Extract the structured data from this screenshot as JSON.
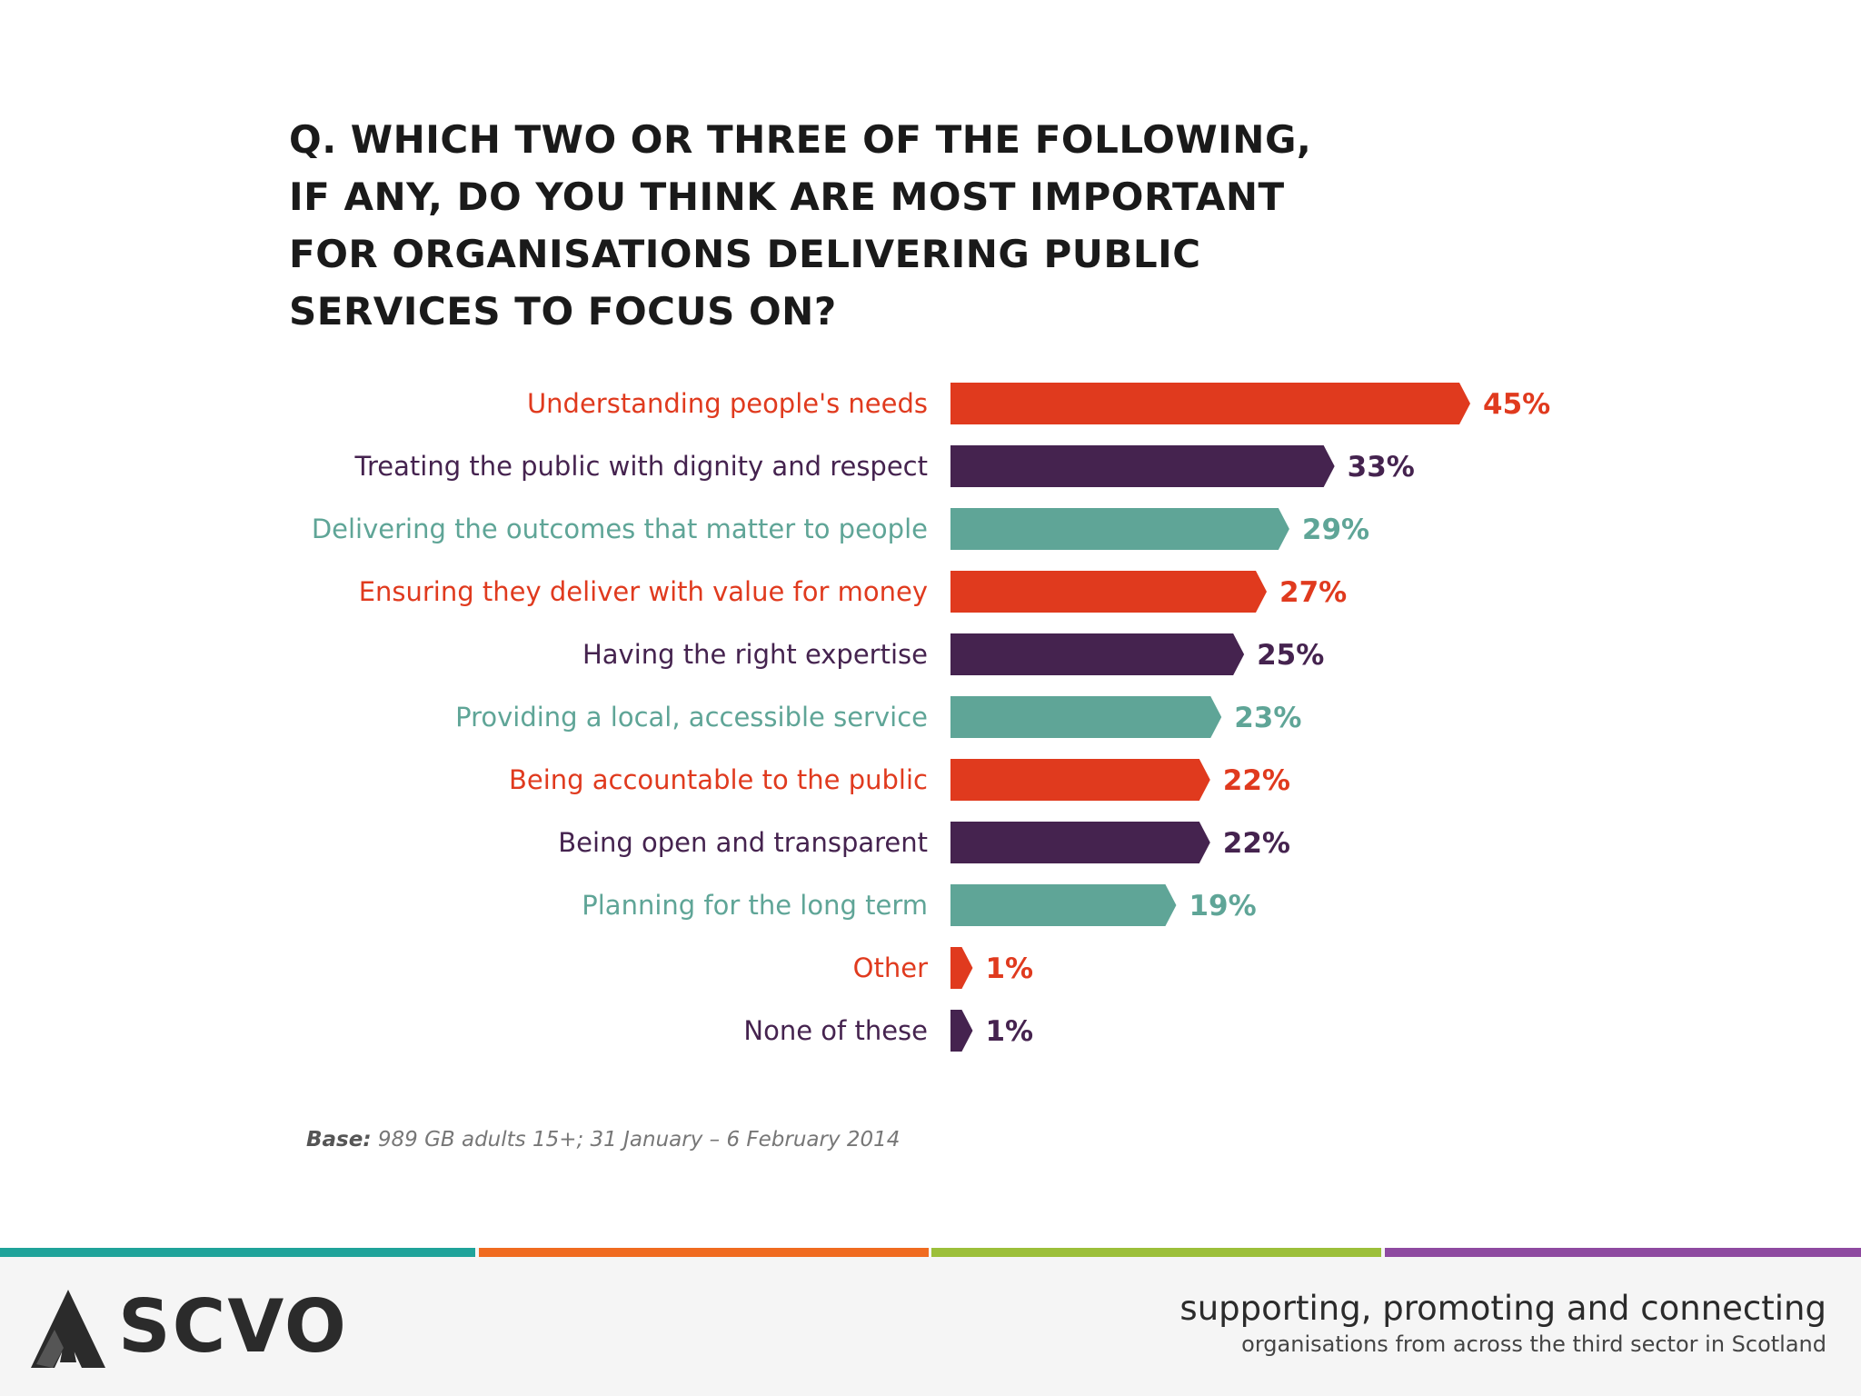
{
  "title": "Q. WHICH TWO OR THREE OF THE FOLLOWING, IF ANY, DO YOU THINK ARE MOST IMPORTANT FOR ORGANISATIONS DELIVERING PUBLIC SERVICES TO FOCUS ON?",
  "chart_data": {
    "type": "bar",
    "orientation": "horizontal",
    "title": "Q. WHICH TWO OR THREE OF THE FOLLOWING, IF ANY, DO YOU THINK ARE MOST IMPORTANT FOR ORGANISATIONS DELIVERING PUBLIC SERVICES TO FOCUS ON?",
    "categories": [
      "Understanding people's needs",
      "Treating the public with dignity and respect",
      "Delivering the outcomes that matter to people",
      "Ensuring they deliver with value for money",
      "Having the right expertise",
      "Providing a local, accessible service",
      "Being accountable to the public",
      "Being open and transparent",
      "Planning for the long term",
      "Other",
      "None of these"
    ],
    "values": [
      45,
      33,
      29,
      27,
      25,
      23,
      22,
      22,
      19,
      1,
      1
    ],
    "value_labels": [
      "45%",
      "33%",
      "29%",
      "27%",
      "25%",
      "23%",
      "22%",
      "22%",
      "19%",
      "1%",
      "1%"
    ],
    "colors": [
      "#e03a1e",
      "#45234f",
      "#5fa597",
      "#e03a1e",
      "#45234f",
      "#5fa597",
      "#e03a1e",
      "#45234f",
      "#5fa597",
      "#e03a1e",
      "#45234f"
    ],
    "xlim": [
      0,
      45
    ],
    "grid": false,
    "legend": false
  },
  "base": {
    "label": "Base:",
    "text": " 989 GB adults 15+; 31 January – 6 February 2014"
  },
  "footer": {
    "stripe_colors": [
      "#1fa39a",
      "#f06b20",
      "#9cbf3a",
      "#8e4aa0"
    ],
    "logo_text": "SCVO",
    "logo_icon": "scvo-triangle-icon",
    "tagline_main": "supporting, promoting and connecting",
    "tagline_sub": "organisations from across the third sector in Scotland"
  }
}
